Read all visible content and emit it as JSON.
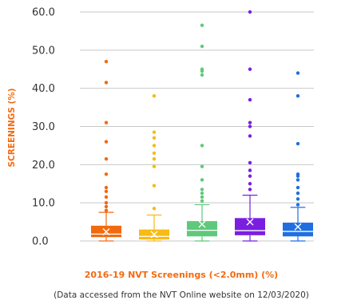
{
  "chart_data": {
    "type": "box",
    "title": "",
    "xlabel": "2016-19 NVT Screenings (<2.0mm) (%)",
    "ylabel": "SCREENINGS (%)",
    "ylim": [
      0,
      60
    ],
    "yticks": [
      "0.0",
      "10.0",
      "20.0",
      "30.0",
      "40.0",
      "50.0",
      "60.0"
    ],
    "grid": true,
    "label_color": "#f26a10",
    "series": [
      {
        "color": "#f26a10",
        "q1": 1.0,
        "median": 1.8,
        "q3": 4.0,
        "mean": 2.4,
        "whisker_low": 0.0,
        "whisker_high": 7.5,
        "outliers": [
          8.0,
          9.0,
          10.0,
          11.5,
          13.0,
          14.0,
          17.5,
          21.5,
          26.0,
          31.0,
          41.5,
          47.0
        ]
      },
      {
        "color": "#f7bb14",
        "q1": 0.4,
        "median": 1.2,
        "q3": 3.0,
        "mean": 1.7,
        "whisker_low": 0.0,
        "whisker_high": 6.8,
        "outliers": [
          8.5,
          14.5,
          19.5,
          21.5,
          23.0,
          25.0,
          27.0,
          28.5,
          38.0
        ]
      },
      {
        "color": "#5ec97a",
        "q1": 1.2,
        "median": 2.8,
        "q3": 5.2,
        "mean": 4.4,
        "whisker_low": 0.0,
        "whisker_high": 9.5,
        "outliers": [
          10.5,
          11.5,
          12.5,
          13.5,
          16.0,
          19.5,
          25.0,
          43.5,
          44.5,
          45.0,
          51.0,
          56.5
        ]
      },
      {
        "color": "#7a1fe0",
        "q1": 1.5,
        "median": 2.7,
        "q3": 6.0,
        "mean": 5.0,
        "whisker_low": 0.0,
        "whisker_high": 12.0,
        "outliers": [
          13.5,
          15.0,
          17.0,
          18.5,
          20.5,
          27.5,
          30.0,
          31.0,
          37.0,
          45.0,
          60.0
        ]
      },
      {
        "color": "#1f6fe3",
        "q1": 1.2,
        "median": 2.5,
        "q3": 4.8,
        "mean": 3.7,
        "whisker_low": 0.0,
        "whisker_high": 8.8,
        "outliers": [
          9.5,
          11.0,
          12.5,
          14.0,
          16.0,
          17.0,
          17.5,
          25.5,
          38.0,
          44.0
        ]
      }
    ]
  },
  "footnote": "(Data accessed from the NVT Online website on 12/03/2020)"
}
